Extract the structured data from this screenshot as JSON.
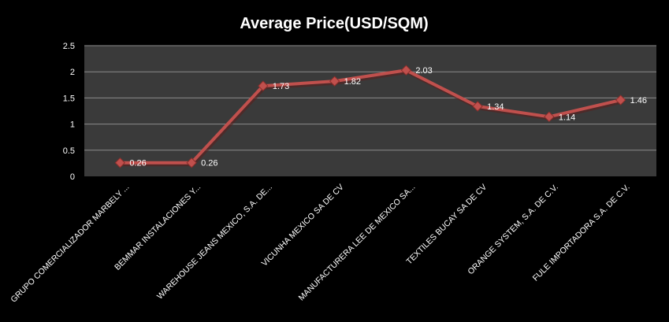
{
  "chart_data": {
    "type": "line",
    "title": "Average Price(USD/SQM)",
    "xlabel": "",
    "ylabel": "",
    "categories": [
      "GRUPO COMERCIALIZADOR MARBELY ...",
      "BEMMAR INSTALACIONES Y...",
      "WAREHOUSE JEANS MEXICO, S.A. DE...",
      "VICUNHA MEXICO SA DE CV",
      "MANUFACTURERA  LEE DE MEXICO SA...",
      "TEXTILES BUCAY SA DE CV",
      "ORANGE SYSTEM,  S.A. DE C.V.",
      "FULE IMPORTADORA S.A. DE C.V."
    ],
    "series": [
      {
        "values": [
          0.26,
          0.26,
          1.73,
          1.82,
          2.03,
          1.34,
          1.14,
          1.46
        ]
      }
    ],
    "data_labels": [
      "0.26",
      "0.26",
      "1.73",
      "1.82",
      "2.03",
      "1.34",
      "1.14",
      "1.46"
    ],
    "yticks": [
      "0",
      "0.5",
      "1",
      "1.5",
      "2",
      "2.5"
    ],
    "ylim": [
      0,
      2.5
    ],
    "grid": true,
    "colors": {
      "background": "#000000",
      "plot_area": "#3a3a3a",
      "gridline": "#8a8a8a",
      "line": "#c0504d",
      "marker": "#c0504d",
      "text": "#ffffff"
    }
  }
}
